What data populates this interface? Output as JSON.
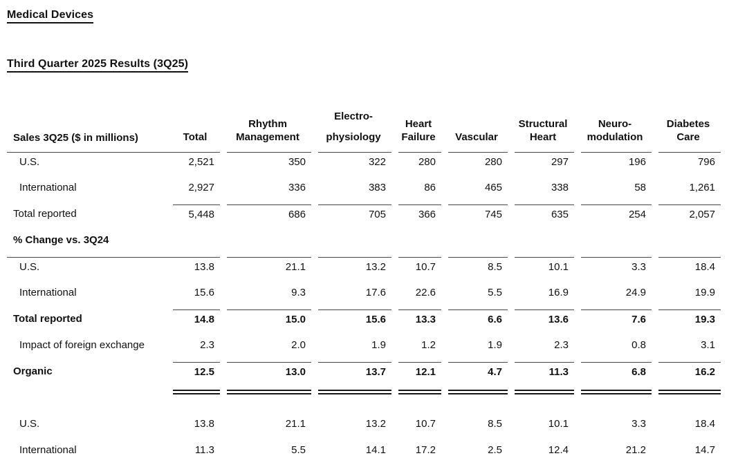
{
  "page": {
    "section_title": "Medical Devices",
    "quarter_title": "Third Quarter 2025 Results (3Q25)"
  },
  "table": {
    "header": {
      "label": "Sales 3Q25 ($ in millions)",
      "columns": [
        {
          "name": "total",
          "lines": [
            "Total"
          ]
        },
        {
          "name": "rhythm-management",
          "lines": [
            "Rhythm",
            "Management"
          ]
        },
        {
          "name": "electrophysiology",
          "lines": [
            "Electro-",
            "physiology"
          ],
          "raised": true
        },
        {
          "name": "heart-failure",
          "lines": [
            "Heart",
            "Failure"
          ]
        },
        {
          "name": "vascular",
          "lines": [
            "Vascular"
          ]
        },
        {
          "name": "structural-heart",
          "lines": [
            "Structural",
            "Heart"
          ]
        },
        {
          "name": "neuromodulation",
          "lines": [
            "Neuro-",
            "modulation"
          ]
        },
        {
          "name": "diabetes-care",
          "lines": [
            "Diabetes",
            "Care"
          ]
        }
      ]
    },
    "rows": [
      {
        "type": "data",
        "label": "U.S.",
        "indent": true,
        "top_border": "full",
        "values": [
          "2,521",
          "350",
          "322",
          "280",
          "280",
          "297",
          "196",
          "796"
        ]
      },
      {
        "type": "data",
        "label": "International",
        "indent": true,
        "values": [
          "2,927",
          "336",
          "383",
          "86",
          "465",
          "338",
          "58",
          "1,261"
        ]
      },
      {
        "type": "data",
        "label": "Total reported",
        "top_border": "values",
        "values": [
          "5,448",
          "686",
          "705",
          "366",
          "745",
          "635",
          "254",
          "2,057"
        ]
      },
      {
        "type": "section",
        "label": "% Change vs. 3Q24"
      },
      {
        "type": "data",
        "label": "U.S.",
        "indent": true,
        "top_border": "full",
        "values": [
          "13.8",
          "21.1",
          "13.2",
          "10.7",
          "8.5",
          "10.1",
          "3.3",
          "18.4"
        ]
      },
      {
        "type": "data",
        "label": "International",
        "indent": true,
        "values": [
          "15.6",
          "9.3",
          "17.6",
          "22.6",
          "5.5",
          "16.9",
          "24.9",
          "19.9"
        ]
      },
      {
        "type": "data",
        "label": "Total reported",
        "bold": true,
        "top_border": "values",
        "values": [
          "14.8",
          "15.0",
          "15.6",
          "13.3",
          "6.6",
          "13.6",
          "7.6",
          "19.3"
        ]
      },
      {
        "type": "data",
        "label": "Impact of foreign exchange",
        "indent": true,
        "values": [
          "2.3",
          "2.0",
          "1.9",
          "1.2",
          "1.9",
          "2.3",
          "0.8",
          "3.1"
        ]
      },
      {
        "type": "data",
        "label": "Organic",
        "bold": true,
        "top_border": "values",
        "values": [
          "12.5",
          "13.0",
          "13.7",
          "12.1",
          "4.7",
          "11.3",
          "6.8",
          "16.2"
        ]
      },
      {
        "type": "double_rule"
      },
      {
        "type": "data",
        "label": "U.S.",
        "indent": true,
        "values": [
          "13.8",
          "21.1",
          "13.2",
          "10.7",
          "8.5",
          "10.1",
          "3.3",
          "18.4"
        ]
      },
      {
        "type": "data",
        "label": "International",
        "indent": true,
        "values": [
          "11.3",
          "5.5",
          "14.1",
          "17.2",
          "2.5",
          "12.4",
          "21.2",
          "14.7"
        ]
      }
    ]
  }
}
